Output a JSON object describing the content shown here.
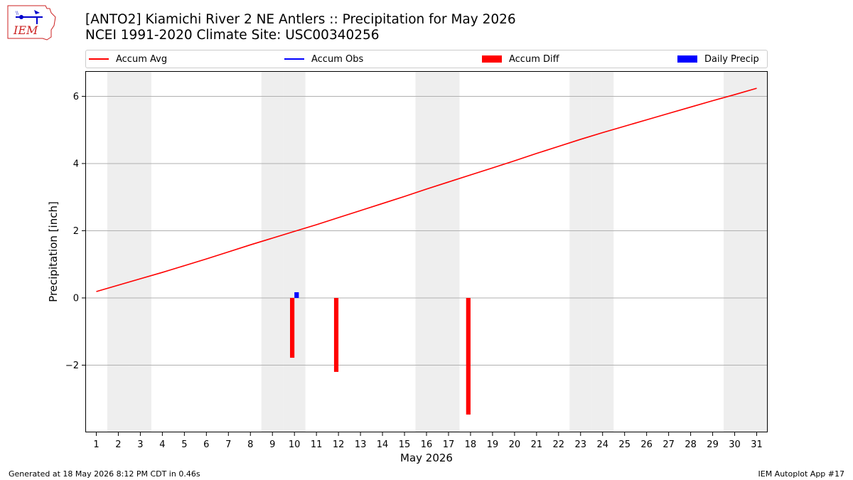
{
  "header": {
    "title_line1": "[ANTO2] Kiamichi River 2 NE Antlers :: Precipitation for May 2026",
    "title_line2": "NCEI 1991-2020 Climate Site: USC00340256"
  },
  "logo": {
    "text": "IEM"
  },
  "footer": {
    "left": "Generated at 18 May 2026 8:12 PM CDT in 0.46s",
    "right": "IEM Autoplot App #17"
  },
  "legend": [
    {
      "label": "Accum Avg",
      "kind": "line",
      "color": "#ff0000"
    },
    {
      "label": "Accum Obs",
      "kind": "line",
      "color": "#0000ff"
    },
    {
      "label": "Accum Diff",
      "kind": "patch",
      "color": "#ff0000"
    },
    {
      "label": "Daily Precip",
      "kind": "patch",
      "color": "#0000ff"
    }
  ],
  "chart_data": {
    "type": "bar",
    "xlabel": "May 2026",
    "ylabel": "Precipitation [inch]",
    "xlim": [
      0.5,
      31.5
    ],
    "ylim": [
      -4.0,
      6.75
    ],
    "yticks": [
      -2,
      0,
      2,
      4,
      6
    ],
    "xticks": [
      1,
      2,
      3,
      4,
      5,
      6,
      7,
      8,
      9,
      10,
      11,
      12,
      13,
      14,
      15,
      16,
      17,
      18,
      19,
      20,
      21,
      22,
      23,
      24,
      25,
      26,
      27,
      28,
      29,
      30,
      31
    ],
    "grid": "y",
    "legend_position": "top",
    "weekend_shading_days": [
      2,
      3,
      9,
      10,
      16,
      17,
      23,
      24,
      30,
      31
    ],
    "accum_avg": {
      "x": [
        1,
        2,
        3,
        4,
        5,
        6,
        7,
        8,
        9,
        10,
        11,
        12,
        13,
        14,
        15,
        16,
        17,
        18,
        19,
        20,
        21,
        22,
        23,
        24,
        25,
        26,
        27,
        28,
        29,
        30,
        31
      ],
      "y": [
        0.19,
        0.38,
        0.57,
        0.76,
        0.96,
        1.16,
        1.37,
        1.58,
        1.78,
        1.98,
        2.18,
        2.39,
        2.6,
        2.81,
        3.02,
        3.24,
        3.45,
        3.66,
        3.87,
        4.08,
        4.3,
        4.51,
        4.72,
        4.92,
        5.11,
        5.3,
        5.49,
        5.68,
        5.87,
        6.05,
        6.24
      ]
    },
    "accum_diff": {
      "x": [
        10,
        12,
        18
      ],
      "y": [
        -1.78,
        -2.2,
        -3.47
      ]
    },
    "daily_precip": {
      "x": [
        10
      ],
      "y": [
        0.17
      ]
    }
  }
}
